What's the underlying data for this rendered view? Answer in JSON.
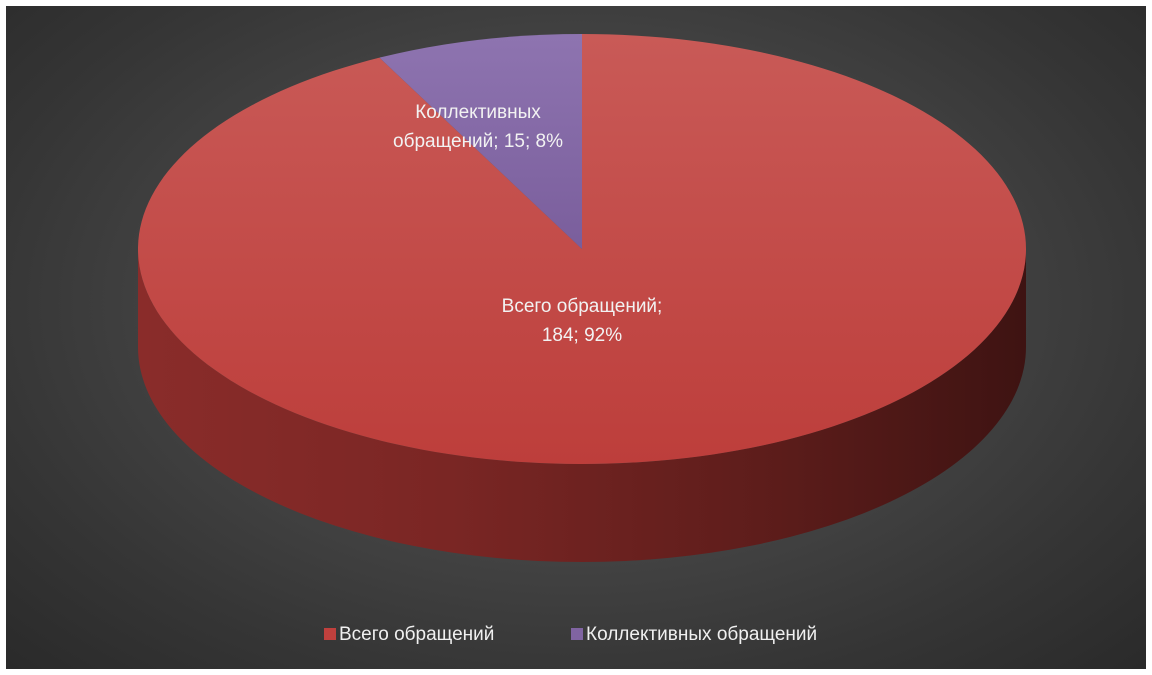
{
  "chart_data": {
    "type": "pie",
    "style": "3d",
    "title": "",
    "legend_position": "bottom",
    "slices": [
      {
        "label": "Всего  обращений",
        "value": 184,
        "percent": 92,
        "color": "#c0403d",
        "data_label": [
          "Всего  обращений;",
          "184; 92%"
        ]
      },
      {
        "label": "Коллективных обращений",
        "value": 15,
        "percent": 8,
        "color": "#8064a2",
        "data_label": [
          "Коллективных",
          "обращений; 15; 8%"
        ]
      }
    ]
  }
}
